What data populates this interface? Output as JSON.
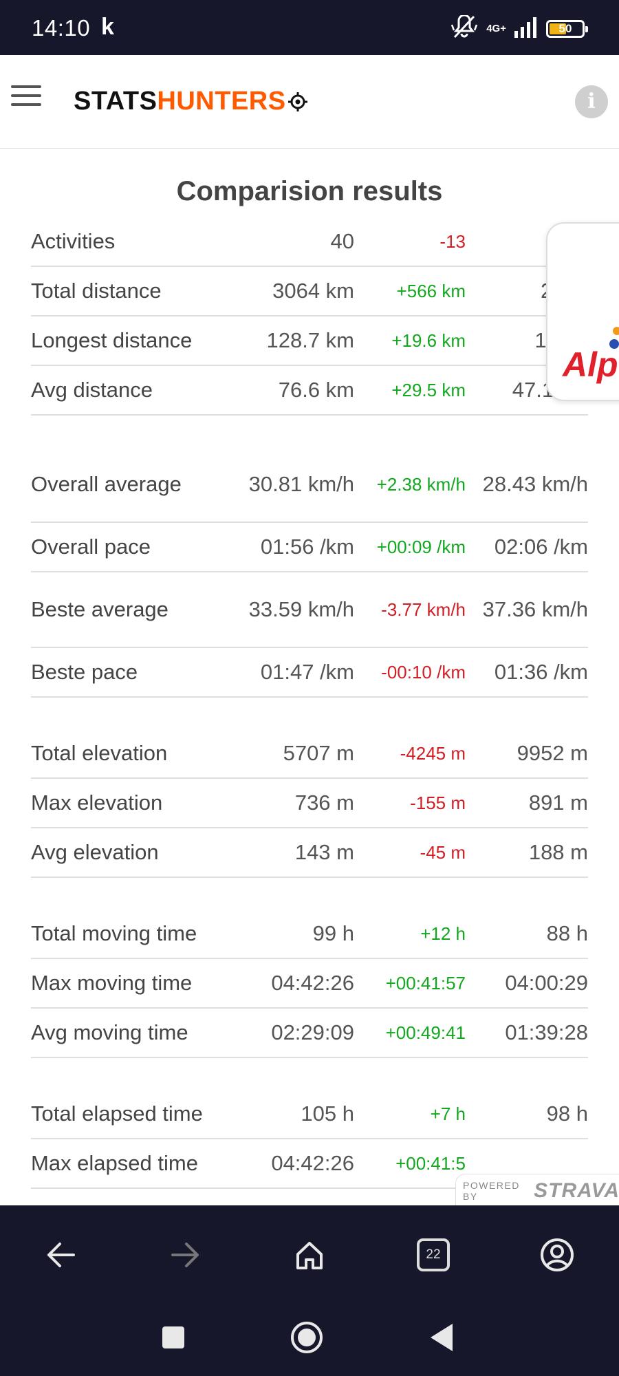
{
  "status_bar": {
    "time": "14:10",
    "notification_letter": "k",
    "network": "4G+",
    "battery_level": "50",
    "battery_color": "#f0b419"
  },
  "header": {
    "logo_part1": "STATS",
    "logo_part2": "HUNTERS",
    "logo_color": "#ff5a00"
  },
  "page": {
    "title": "Comparision results"
  },
  "rows": [
    {
      "label": "Activities",
      "value": "40",
      "diff": "-13",
      "diff_sign": "neg",
      "other": ""
    },
    {
      "label": "Total distance",
      "value": "3064 km",
      "diff": "+566 km",
      "diff_sign": "pos",
      "other": "2499"
    },
    {
      "label": "Longest distance",
      "value": "128.7 km",
      "diff": "+19.6 km",
      "diff_sign": "pos",
      "other": "109.1"
    },
    {
      "label": "Avg distance",
      "value": "76.6 km",
      "diff": "+29.5 km",
      "diff_sign": "pos",
      "other": "47.1 km"
    },
    {
      "label": "Overall average",
      "value": "30.81 km/h",
      "diff": "+2.38 km/h",
      "diff_sign": "pos",
      "other": "28.43 km/h"
    },
    {
      "label": "Overall pace",
      "value": "01:56 /km",
      "diff": "+00:09 /km",
      "diff_sign": "pos",
      "other": "02:06 /km"
    },
    {
      "label": "Beste average",
      "value": "33.59 km/h",
      "diff": "-3.77 km/h",
      "diff_sign": "neg",
      "other": "37.36 km/h"
    },
    {
      "label": "Beste pace",
      "value": "01:47 /km",
      "diff": "-00:10 /km",
      "diff_sign": "neg",
      "other": "01:36 /km"
    },
    {
      "label": "Total elevation",
      "value": "5707 m",
      "diff": "-4245 m",
      "diff_sign": "neg",
      "other": "9952 m"
    },
    {
      "label": "Max elevation",
      "value": "736 m",
      "diff": "-155 m",
      "diff_sign": "neg",
      "other": "891 m"
    },
    {
      "label": "Avg elevation",
      "value": "143 m",
      "diff": "-45 m",
      "diff_sign": "neg",
      "other": "188 m"
    },
    {
      "label": "Total moving time",
      "value": "99 h",
      "diff": "+12 h",
      "diff_sign": "pos",
      "other": "88 h"
    },
    {
      "label": "Max moving time",
      "value": "04:42:26",
      "diff": "+00:41:57",
      "diff_sign": "pos",
      "other": "04:00:29"
    },
    {
      "label": "Avg moving time",
      "value": "02:29:09",
      "diff": "+00:49:41",
      "diff_sign": "pos",
      "other": "01:39:28"
    },
    {
      "label": "Total elapsed time",
      "value": "105 h",
      "diff": "+7 h",
      "diff_sign": "pos",
      "other": "98 h"
    },
    {
      "label": "Max elapsed time",
      "value": "04:42:26",
      "diff": "+00:41:5",
      "diff_sign": "pos",
      "other": ""
    }
  ],
  "side_card": {
    "text": "Alp"
  },
  "strava": {
    "powered_by": "POWERED BY",
    "name": "STRAVA"
  },
  "toolbar": {
    "tab_count": "22"
  },
  "colors": {
    "positive": "#13a81f",
    "negative": "#d21f26",
    "dark_bar": "#16172a"
  },
  "icons": {
    "back": "arrow-left-icon",
    "forward": "arrow-right-icon",
    "home": "home-icon",
    "tabs": "tabs-icon",
    "account": "account-icon",
    "nav_recents": "square-icon",
    "nav_home": "circle-icon",
    "nav_back": "triangle-back-icon"
  }
}
